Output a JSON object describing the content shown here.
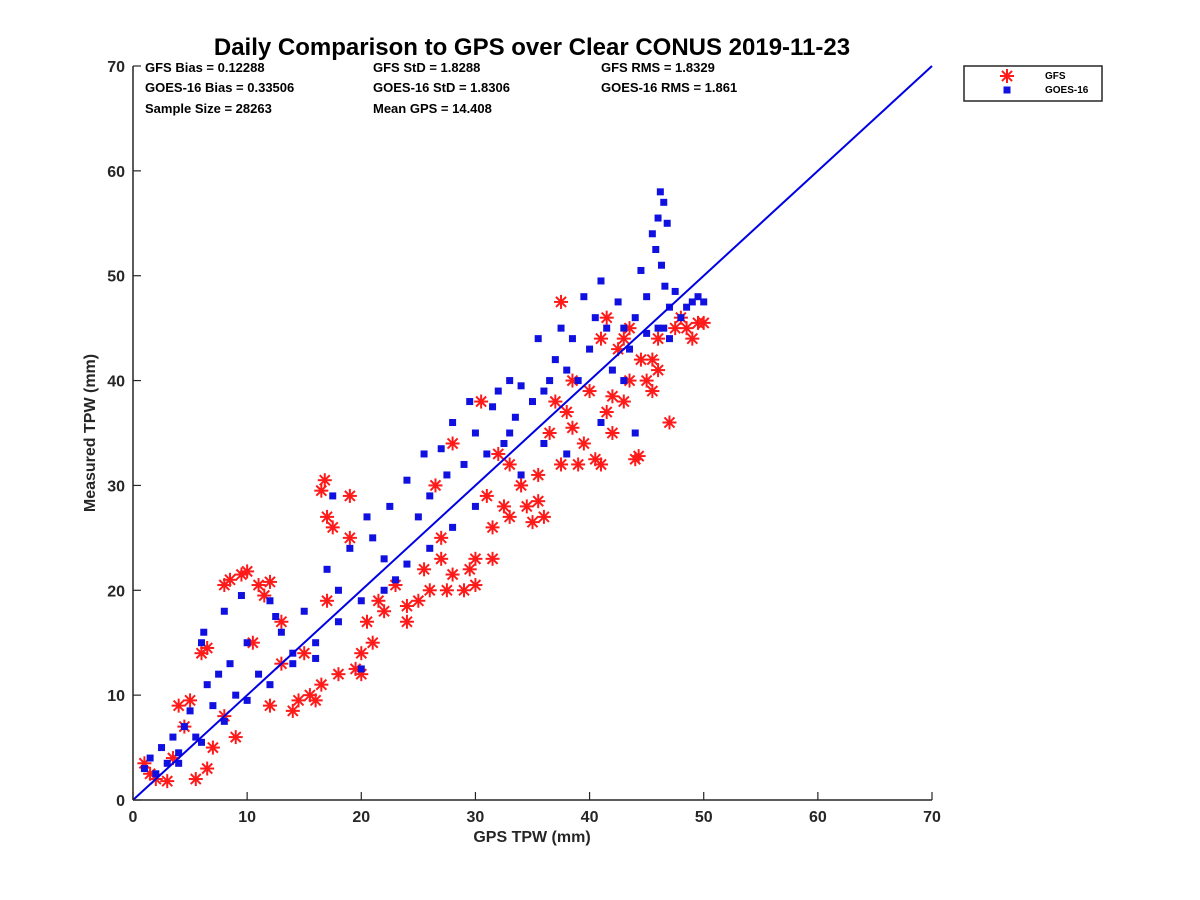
{
  "chart_data": {
    "type": "scatter",
    "title": "Daily Comparison to GPS over Clear CONUS 2019-11-23",
    "xlabel": "GPS TPW (mm)",
    "ylabel": "Measured TPW (mm)",
    "xlim": [
      0,
      70
    ],
    "ylim": [
      0,
      70
    ],
    "xticks": [
      0,
      10,
      20,
      30,
      40,
      50,
      60,
      70
    ],
    "yticks": [
      0,
      10,
      20,
      30,
      40,
      50,
      60,
      70
    ],
    "legend_position": "outside-top-right",
    "stats": [
      "GFS Bias = 0.12288",
      "GFS StD = 1.8288",
      "GFS RMS = 1.8329",
      "GOES-16 Bias = 0.33506",
      "GOES-16 StD = 1.8306",
      "GOES-16 RMS = 1.861",
      "Sample Size = 28263",
      "Mean GPS = 14.408"
    ],
    "reference_line": {
      "name": "1:1 line",
      "x": [
        0,
        70
      ],
      "y": [
        0,
        70
      ],
      "color": "#0000e6"
    },
    "series": [
      {
        "name": "GFS",
        "marker": "asterisk",
        "color": "#ff1a1a",
        "points": [
          [
            1,
            3.5
          ],
          [
            1.5,
            2.5
          ],
          [
            2,
            2
          ],
          [
            3,
            1.8
          ],
          [
            3.5,
            4
          ],
          [
            4,
            9
          ],
          [
            4.5,
            7
          ],
          [
            5,
            9.5
          ],
          [
            5.5,
            2
          ],
          [
            6,
            14
          ],
          [
            6.5,
            14.5
          ],
          [
            6.5,
            3
          ],
          [
            7,
            5
          ],
          [
            8,
            20.5
          ],
          [
            8.5,
            21
          ],
          [
            9,
            6
          ],
          [
            9.5,
            21.5
          ],
          [
            10,
            21.8
          ],
          [
            10.5,
            15
          ],
          [
            11,
            20.5
          ],
          [
            11.5,
            19.5
          ],
          [
            12,
            20.8
          ],
          [
            12,
            9
          ],
          [
            13,
            17
          ],
          [
            14,
            8.5
          ],
          [
            14.5,
            9.5
          ],
          [
            15,
            14
          ],
          [
            15.5,
            10
          ],
          [
            16,
            9.5
          ],
          [
            16.5,
            11
          ],
          [
            16.8,
            30.5
          ],
          [
            16.5,
            29.5
          ],
          [
            17,
            27
          ],
          [
            17,
            19
          ],
          [
            17.5,
            26
          ],
          [
            18,
            12
          ],
          [
            19,
            29
          ],
          [
            19,
            25
          ],
          [
            19.5,
            12.5
          ],
          [
            20,
            12
          ],
          [
            20,
            14
          ],
          [
            20.5,
            17
          ],
          [
            21,
            15
          ],
          [
            21.5,
            19
          ],
          [
            22,
            18
          ],
          [
            23,
            20.5
          ],
          [
            24,
            17
          ],
          [
            24,
            18.5
          ],
          [
            25,
            19
          ],
          [
            25.5,
            22
          ],
          [
            26,
            20
          ],
          [
            27,
            23
          ],
          [
            27.5,
            20
          ],
          [
            28,
            21.5
          ],
          [
            29,
            20
          ],
          [
            29.5,
            22
          ],
          [
            30,
            20.5
          ],
          [
            30,
            23
          ],
          [
            30.5,
            38
          ],
          [
            31,
            29
          ],
          [
            31.5,
            26
          ],
          [
            31.5,
            23
          ],
          [
            32,
            33
          ],
          [
            32.5,
            28
          ],
          [
            33,
            27
          ],
          [
            34,
            30
          ],
          [
            34.5,
            28
          ],
          [
            35,
            26.5
          ],
          [
            35.5,
            28.5
          ],
          [
            35.5,
            31
          ],
          [
            36,
            27
          ],
          [
            36.5,
            35
          ],
          [
            37,
            38
          ],
          [
            37.5,
            47.5
          ],
          [
            37.5,
            32
          ],
          [
            38,
            37
          ],
          [
            38.5,
            40
          ],
          [
            38.5,
            35.5
          ],
          [
            39,
            32
          ],
          [
            39.5,
            34
          ],
          [
            40,
            39
          ],
          [
            40.5,
            32.5
          ],
          [
            41,
            32
          ],
          [
            41,
            44
          ],
          [
            41.5,
            37
          ],
          [
            42,
            35
          ],
          [
            42.5,
            43
          ],
          [
            43,
            38
          ],
          [
            43.5,
            40
          ],
          [
            43.5,
            45
          ],
          [
            44,
            32.5
          ],
          [
            44.3,
            32.8
          ],
          [
            44.5,
            42
          ],
          [
            45,
            40
          ],
          [
            45.5,
            39
          ],
          [
            45.5,
            42
          ],
          [
            46,
            44
          ],
          [
            46,
            41
          ],
          [
            47,
            36
          ],
          [
            47.5,
            45
          ],
          [
            48,
            46
          ],
          [
            48.5,
            45
          ],
          [
            49,
            44
          ],
          [
            49.5,
            45.5
          ],
          [
            50,
            45.5
          ],
          [
            42,
            38.5
          ],
          [
            33,
            32
          ],
          [
            27,
            25
          ],
          [
            13,
            13
          ],
          [
            8,
            8
          ],
          [
            26.5,
            30
          ],
          [
            28,
            34
          ],
          [
            41.5,
            46
          ],
          [
            43,
            44
          ]
        ]
      },
      {
        "name": "GOES-16",
        "marker": "square",
        "color": "#1010e0",
        "points": [
          [
            1,
            3
          ],
          [
            1.5,
            4
          ],
          [
            2,
            2.5
          ],
          [
            2.5,
            5
          ],
          [
            3,
            3.5
          ],
          [
            3.5,
            6
          ],
          [
            4,
            4.5
          ],
          [
            4.5,
            7
          ],
          [
            5,
            8.5
          ],
          [
            5.5,
            6
          ],
          [
            6,
            15
          ],
          [
            6.2,
            16
          ],
          [
            6.5,
            11
          ],
          [
            7,
            9
          ],
          [
            7.5,
            12
          ],
          [
            8,
            18
          ],
          [
            8.5,
            13
          ],
          [
            9,
            10
          ],
          [
            9.5,
            19.5
          ],
          [
            10,
            15
          ],
          [
            11,
            12
          ],
          [
            12,
            19
          ],
          [
            12.5,
            17.5
          ],
          [
            13,
            16
          ],
          [
            14,
            14
          ],
          [
            15,
            18
          ],
          [
            16,
            13.5
          ],
          [
            17,
            22
          ],
          [
            17.5,
            29
          ],
          [
            18,
            20
          ],
          [
            19,
            24
          ],
          [
            20,
            12.5
          ],
          [
            20.5,
            27
          ],
          [
            21,
            25
          ],
          [
            22,
            23
          ],
          [
            22.5,
            28
          ],
          [
            23,
            21
          ],
          [
            24,
            30.5
          ],
          [
            25,
            27
          ],
          [
            25.5,
            33
          ],
          [
            26,
            29
          ],
          [
            27,
            33.5
          ],
          [
            27.5,
            31
          ],
          [
            28,
            36
          ],
          [
            29,
            32
          ],
          [
            29.5,
            38
          ],
          [
            30,
            35
          ],
          [
            31,
            33
          ],
          [
            31.5,
            37.5
          ],
          [
            32,
            39
          ],
          [
            32.5,
            34
          ],
          [
            33,
            40
          ],
          [
            33.5,
            36.5
          ],
          [
            34,
            39.5
          ],
          [
            35,
            38
          ],
          [
            35.5,
            44
          ],
          [
            36,
            39
          ],
          [
            36.5,
            40
          ],
          [
            37,
            42
          ],
          [
            37.5,
            45
          ],
          [
            38,
            41
          ],
          [
            38.5,
            44
          ],
          [
            39,
            40
          ],
          [
            39.5,
            48
          ],
          [
            40,
            43
          ],
          [
            40.5,
            46
          ],
          [
            41,
            49.5
          ],
          [
            41.5,
            45
          ],
          [
            42,
            41
          ],
          [
            42.5,
            47.5
          ],
          [
            43,
            45
          ],
          [
            43.5,
            43
          ],
          [
            44,
            46
          ],
          [
            44.5,
            50.5
          ],
          [
            45,
            48
          ],
          [
            45.5,
            54
          ],
          [
            45.8,
            52.5
          ],
          [
            46,
            55.5
          ],
          [
            46.2,
            58
          ],
          [
            46.3,
            51
          ],
          [
            46.5,
            57
          ],
          [
            46.6,
            49
          ],
          [
            46.8,
            55
          ],
          [
            47,
            47
          ],
          [
            47.5,
            48.5
          ],
          [
            48,
            46
          ],
          [
            48.5,
            47
          ],
          [
            49,
            47.5
          ],
          [
            49.5,
            48
          ],
          [
            50,
            47.5
          ],
          [
            45,
            44.5
          ],
          [
            46,
            45
          ],
          [
            43,
            40
          ],
          [
            44,
            35
          ],
          [
            41,
            36
          ],
          [
            38,
            33
          ],
          [
            36,
            34
          ],
          [
            34,
            31
          ],
          [
            33,
            35
          ],
          [
            30,
            28
          ],
          [
            28,
            26
          ],
          [
            26,
            24
          ],
          [
            24,
            22.5
          ],
          [
            22,
            20
          ],
          [
            20,
            19
          ],
          [
            18,
            17
          ],
          [
            16,
            15
          ],
          [
            14,
            13
          ],
          [
            12,
            11
          ],
          [
            10,
            9.5
          ],
          [
            8,
            7.5
          ],
          [
            6,
            5.5
          ],
          [
            4,
            3.5
          ],
          [
            46.5,
            45
          ],
          [
            47,
            44
          ]
        ]
      }
    ]
  }
}
